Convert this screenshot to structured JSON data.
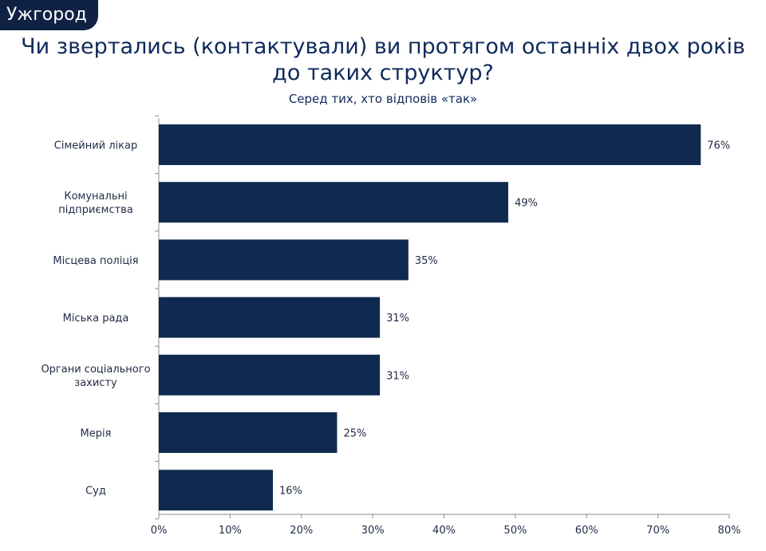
{
  "header": {
    "city": "Ужгород",
    "title_line1": "Чи звертались (контактували) ви протягом останніх двох років",
    "title_line2": "до таких структур?",
    "subtitle": "Серед тих, хто відповів «так»"
  },
  "colors": {
    "bar": "#0f2a4e",
    "title": "#0f2a5c",
    "tag": "#0f2244"
  },
  "chart_data": {
    "type": "bar",
    "orientation": "horizontal",
    "categories": [
      [
        "Сімейний лікар"
      ],
      [
        "Комунальні",
        "підприємства"
      ],
      [
        "Місцева поліція"
      ],
      [
        "Міська рада"
      ],
      [
        "Органи соціального",
        "захисту"
      ],
      [
        "Мерія"
      ],
      [
        "Суд"
      ]
    ],
    "values": [
      76,
      49,
      35,
      31,
      31,
      25,
      16
    ],
    "value_labels": [
      "76%",
      "49%",
      "35%",
      "31%",
      "31%",
      "25%",
      "16%"
    ],
    "xlim": [
      0,
      80
    ],
    "ticks": [
      0,
      10,
      20,
      30,
      40,
      50,
      60,
      70,
      80
    ],
    "tick_labels": [
      "0%",
      "10%",
      "20%",
      "30%",
      "40%",
      "50%",
      "60%",
      "70%",
      "80%"
    ],
    "grid": false,
    "legend": "none"
  }
}
